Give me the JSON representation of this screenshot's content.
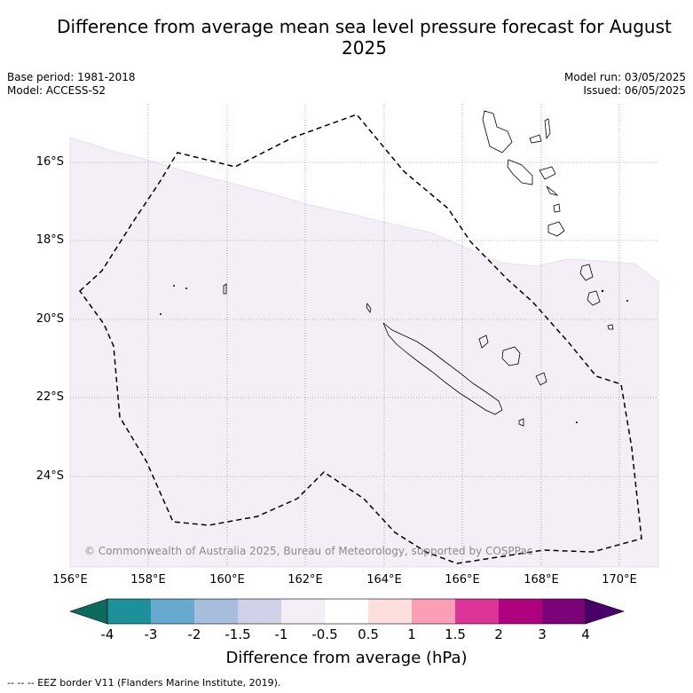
{
  "title": "Difference from average mean sea level pressure forecast for August 2025",
  "base_period": "Base period: 1981-2018",
  "model": "Model: ACCESS-S2",
  "model_run": "Model run: 03/05/2025",
  "issued": "Issued: 06/05/2025",
  "copyright": "© Commonwealth of Australia 2025, Bureau of Meteorology, supported by COSPPac",
  "map": {
    "lon_range": [
      156,
      171
    ],
    "lat_range": [
      -26.3,
      -14.5
    ],
    "lon_ticks": [
      "156°E",
      "158°E",
      "160°E",
      "162°E",
      "164°E",
      "166°E",
      "168°E",
      "170°E"
    ],
    "lat_ticks": [
      "16°S",
      "18°S",
      "20°S",
      "22°S",
      "24°S"
    ],
    "shaded_category": "-1 to -0.5",
    "shaded_color": "#f4eef6"
  },
  "colorbar": {
    "label": "Difference from average (hPa)",
    "ticks": [
      "-4",
      "-3",
      "-2",
      "-1.5",
      "-1",
      "-0.5",
      "0.5",
      "1",
      "1.5",
      "2",
      "3",
      "4"
    ],
    "colors": [
      "#0e6a5c",
      "#1c9199",
      "#67a9cf",
      "#a6bddb",
      "#d0d1e6",
      "#f4eef6",
      "#ffffff",
      "#fde0dd",
      "#fa9fb5",
      "#dd3497",
      "#ae017e",
      "#7a0177",
      "#49006a"
    ]
  },
  "footnote": "--  --  -- EEZ border V11 (Flanders Marine Institute, 2019)."
}
